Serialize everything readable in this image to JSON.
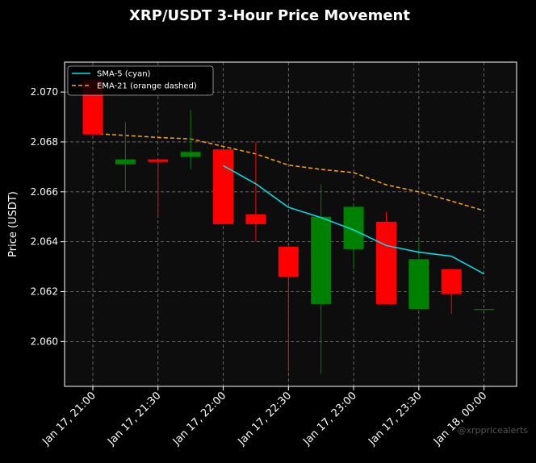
{
  "chart_data": {
    "type": "candlestick",
    "title": "XRP/USDT 3-Hour Price Movement",
    "ylabel": "Price (USDT)",
    "xlabel": "",
    "ylim": [
      2.0582,
      2.0712
    ],
    "xlim": [
      "Jan 17, 20:47",
      "Jan 18, 00:15"
    ],
    "y_ticks": [
      2.06,
      2.062,
      2.064,
      2.066,
      2.068,
      2.07
    ],
    "y_tick_labels": [
      "2.060",
      "2.062",
      "2.064",
      "2.066",
      "2.068",
      "2.070"
    ],
    "x_ticks": [
      "Jan 17, 21:00",
      "Jan 17, 21:30",
      "Jan 17, 22:00",
      "Jan 17, 22:30",
      "Jan 17, 23:00",
      "Jan 17, 23:30",
      "Jan 18, 00:00"
    ],
    "x_tick_labels": [
      "Jan 17, 21:00",
      "Jan 17, 21:30",
      "Jan 17, 22:00",
      "Jan 17, 22:30",
      "Jan 17, 23:00",
      "Jan 17, 23:30",
      "Jan 18, 00:00"
    ],
    "grid": true,
    "legend_position": "top-left",
    "legend": [
      "SMA-5 (cyan)",
      "EMA-21 (orange dashed)"
    ],
    "candles": [
      {
        "time": "Jan 17, 21:00",
        "open": 2.0705,
        "high": 2.0705,
        "low": 2.0683,
        "close": 2.0683
      },
      {
        "time": "Jan 17, 21:15",
        "open": 2.0671,
        "high": 2.0688,
        "low": 2.066,
        "close": 2.0673
      },
      {
        "time": "Jan 17, 21:30",
        "open": 2.0673,
        "high": 2.0673,
        "low": 2.0651,
        "close": 2.0672
      },
      {
        "time": "Jan 17, 21:45",
        "open": 2.0674,
        "high": 2.0693,
        "low": 2.0669,
        "close": 2.0676
      },
      {
        "time": "Jan 17, 22:00",
        "open": 2.0677,
        "high": 2.0677,
        "low": 2.0647,
        "close": 2.0647
      },
      {
        "time": "Jan 17, 22:15",
        "open": 2.0651,
        "high": 2.068,
        "low": 2.064,
        "close": 2.0647
      },
      {
        "time": "Jan 17, 22:30",
        "open": 2.0638,
        "high": 2.0638,
        "low": 2.0588,
        "close": 2.0626
      },
      {
        "time": "Jan 17, 22:45",
        "open": 2.0615,
        "high": 2.0663,
        "low": 2.0587,
        "close": 2.065
      },
      {
        "time": "Jan 17, 23:00",
        "open": 2.0637,
        "high": 2.0655,
        "low": 2.0629,
        "close": 2.0654
      },
      {
        "time": "Jan 17, 23:15",
        "open": 2.0648,
        "high": 2.0652,
        "low": 2.0615,
        "close": 2.0615
      },
      {
        "time": "Jan 17, 23:30",
        "open": 2.0613,
        "high": 2.0641,
        "low": 2.0613,
        "close": 2.0633
      },
      {
        "time": "Jan 17, 23:45",
        "open": 2.0629,
        "high": 2.0629,
        "low": 2.0611,
        "close": 2.0619
      },
      {
        "time": "Jan 18, 00:00",
        "open": 2.0613,
        "high": 2.0613,
        "low": 2.0613,
        "close": 2.0613
      }
    ],
    "series": [
      {
        "name": "SMA-5 (cyan)",
        "color": "#00e5ee",
        "style": "solid",
        "x": [
          "Jan 17, 22:00",
          "Jan 17, 22:15",
          "Jan 17, 22:30",
          "Jan 17, 22:45",
          "Jan 17, 23:00",
          "Jan 17, 23:15",
          "Jan 17, 23:30",
          "Jan 17, 23:45",
          "Jan 18, 00:00"
        ],
        "values": [
          2.06705,
          2.06632,
          2.06538,
          2.06497,
          2.06447,
          2.06385,
          2.06358,
          2.06342,
          2.06271
        ]
      },
      {
        "name": "EMA-21 (orange dashed)",
        "color": "#ffa500",
        "style": "dashed",
        "x": [
          "Jan 17, 21:00",
          "Jan 17, 21:15",
          "Jan 17, 21:30",
          "Jan 17, 21:45",
          "Jan 17, 22:00",
          "Jan 17, 22:15",
          "Jan 17, 22:30",
          "Jan 17, 22:45",
          "Jan 17, 23:00",
          "Jan 17, 23:15",
          "Jan 17, 23:30",
          "Jan 17, 23:45",
          "Jan 18, 00:00"
        ],
        "values": [
          2.06834,
          2.06826,
          2.06818,
          2.06812,
          2.06782,
          2.06752,
          2.06707,
          2.0669,
          2.06677,
          2.06628,
          2.066,
          2.06563,
          2.06524
        ]
      }
    ],
    "colors": {
      "up": "#008000",
      "down": "#ff0000",
      "background": "#000000",
      "plot_background": "#0d0d0d"
    }
  },
  "watermark": "@xrppricealerts"
}
